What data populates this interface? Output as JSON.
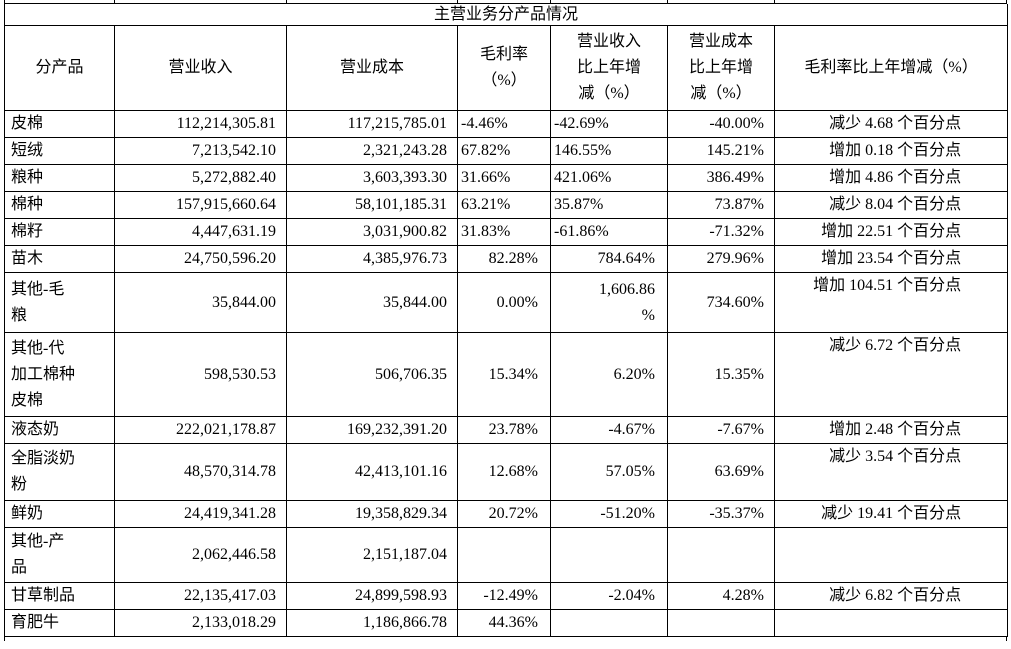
{
  "colors": {
    "background": "#ffffff",
    "border": "#000000",
    "text": "#000000"
  },
  "table": {
    "title": "主营业务分产品情况",
    "columns": [
      {
        "key": "product",
        "label": "分产品"
      },
      {
        "key": "revenue",
        "label": "营业收入"
      },
      {
        "key": "cost",
        "label": "营业成本"
      },
      {
        "key": "margin",
        "label": "毛利率\n（%）"
      },
      {
        "key": "revenue_change",
        "label": "营业收入\n比上年增\n减（%）"
      },
      {
        "key": "cost_change",
        "label": "营业成本\n比上年增\n减（%）"
      },
      {
        "key": "margin_change",
        "label": "毛利率比上年增减（%）"
      }
    ],
    "rows": [
      {
        "product": "皮棉",
        "revenue": "112,214,305.81",
        "cost": "117,215,785.01",
        "margin": "-4.46%",
        "revenue_change": "-42.69%",
        "cost_change": "-40.00%",
        "margin_change": "减少 4.68 个百分点"
      },
      {
        "product": "短绒",
        "revenue": "7,213,542.10",
        "cost": "2,321,243.28",
        "margin": "67.82%",
        "revenue_change": "146.55%",
        "cost_change": "145.21%",
        "margin_change": "增加 0.18 个百分点"
      },
      {
        "product": "粮种",
        "revenue": "5,272,882.40",
        "cost": "3,603,393.30",
        "margin": "31.66%",
        "revenue_change": "421.06%",
        "cost_change": "386.49%",
        "margin_change": "增加 4.86 个百分点"
      },
      {
        "product": "棉种",
        "revenue": "157,915,660.64",
        "cost": "58,101,185.31",
        "margin": "63.21%",
        "revenue_change": "35.87%",
        "cost_change": "73.87%",
        "margin_change": "减少 8.04 个百分点"
      },
      {
        "product": "棉籽",
        "revenue": "4,447,631.19",
        "cost": "3,031,900.82",
        "margin": "31.83%",
        "revenue_change": "-61.86%",
        "cost_change": "-71.32%",
        "margin_change": "增加 22.51 个百分点"
      },
      {
        "product": "苗木",
        "revenue": "24,750,596.20",
        "cost": "4,385,976.73",
        "margin": "82.28%",
        "revenue_change": "784.64%",
        "cost_change": "279.96%",
        "margin_change": "增加 23.54 个百分点"
      },
      {
        "product": "其他-毛\n粮",
        "revenue": "35,844.00",
        "cost": "35,844.00",
        "margin": "0.00%",
        "revenue_change": "1,606.86\n%",
        "cost_change": "734.60%",
        "margin_change": "增加 104.51 个百分点"
      },
      {
        "product": "其他-代\n加工棉种\n皮棉",
        "revenue": "598,530.53",
        "cost": "506,706.35",
        "margin": "15.34%",
        "revenue_change": "6.20%",
        "cost_change": "15.35%",
        "margin_change": "减少 6.72 个百分点"
      },
      {
        "product": "液态奶",
        "revenue": "222,021,178.87",
        "cost": "169,232,391.20",
        "margin": "23.78%",
        "revenue_change": "-4.67%",
        "cost_change": "-7.67%",
        "margin_change": "增加 2.48 个百分点"
      },
      {
        "product": "全脂淡奶\n粉",
        "revenue": "48,570,314.78",
        "cost": "42,413,101.16",
        "margin": "12.68%",
        "revenue_change": "57.05%",
        "cost_change": "63.69%",
        "margin_change": "减少 3.54 个百分点"
      },
      {
        "product": "鲜奶",
        "revenue": "24,419,341.28",
        "cost": "19,358,829.34",
        "margin": "20.72%",
        "revenue_change": "-51.20%",
        "cost_change": "-35.37%",
        "margin_change": "减少 19.41 个百分点"
      },
      {
        "product": "其他-产\n品",
        "revenue": "2,062,446.58",
        "cost": "2,151,187.04",
        "margin": "",
        "revenue_change": "",
        "cost_change": "",
        "margin_change": ""
      },
      {
        "product": "甘草制品",
        "revenue": "22,135,417.03",
        "cost": "24,899,598.93",
        "margin": "-12.49%",
        "revenue_change": "-2.04%",
        "cost_change": "4.28%",
        "margin_change": "减少 6.82 个百分点"
      },
      {
        "product": "育肥牛",
        "revenue": "2,133,018.29",
        "cost": "1,186,866.78",
        "margin": "44.36%",
        "revenue_change": "",
        "cost_change": "",
        "margin_change": ""
      }
    ]
  }
}
